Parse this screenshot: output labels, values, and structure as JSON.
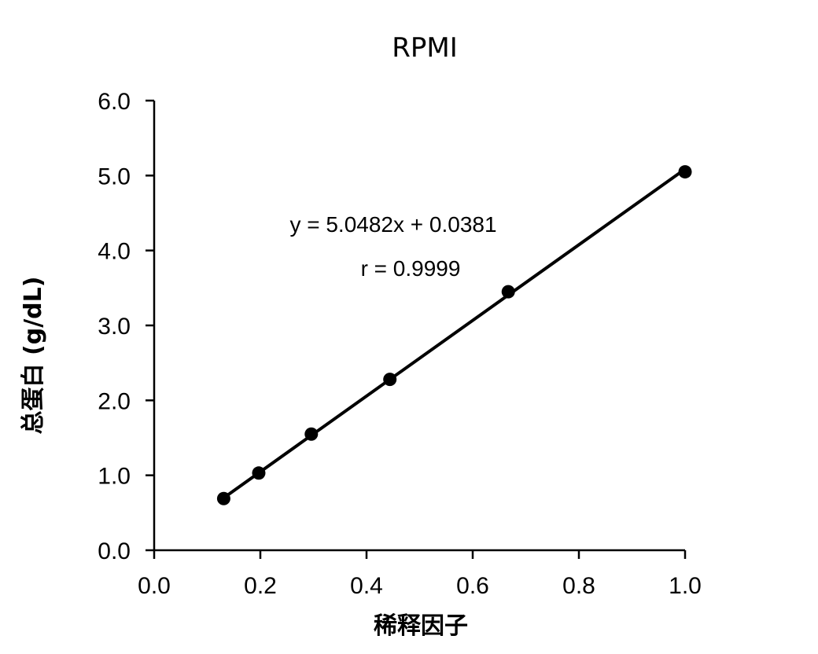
{
  "chart_data": {
    "type": "scatter",
    "title": "RPMI",
    "xlabel": "稀释因子",
    "ylabel": "总蛋白 (g/dL)",
    "xlim": [
      0.0,
      1.0
    ],
    "ylim": [
      0.0,
      6.0
    ],
    "x_ticks": [
      "0.0",
      "0.2",
      "0.4",
      "0.6",
      "0.8",
      "1.0"
    ],
    "y_ticks": [
      "0.0",
      "1.0",
      "2.0",
      "3.0",
      "4.0",
      "5.0",
      "6.0"
    ],
    "grid": false,
    "series": [
      {
        "points": [
          {
            "x": 0.131,
            "y": 0.69
          },
          {
            "x": 0.197,
            "y": 1.03
          },
          {
            "x": 0.296,
            "y": 1.55
          },
          {
            "x": 0.444,
            "y": 2.28
          },
          {
            "x": 0.667,
            "y": 3.45
          },
          {
            "x": 1.0,
            "y": 5.05
          }
        ],
        "color": "#000000"
      }
    ],
    "trendline": {
      "slope": 5.0482,
      "intercept": 0.0381,
      "x_range": [
        0.131,
        1.0
      ],
      "color": "#000000"
    },
    "annotations": {
      "equation": "y = 5.0482x + 0.0381",
      "r": "r = 0.9999"
    }
  }
}
